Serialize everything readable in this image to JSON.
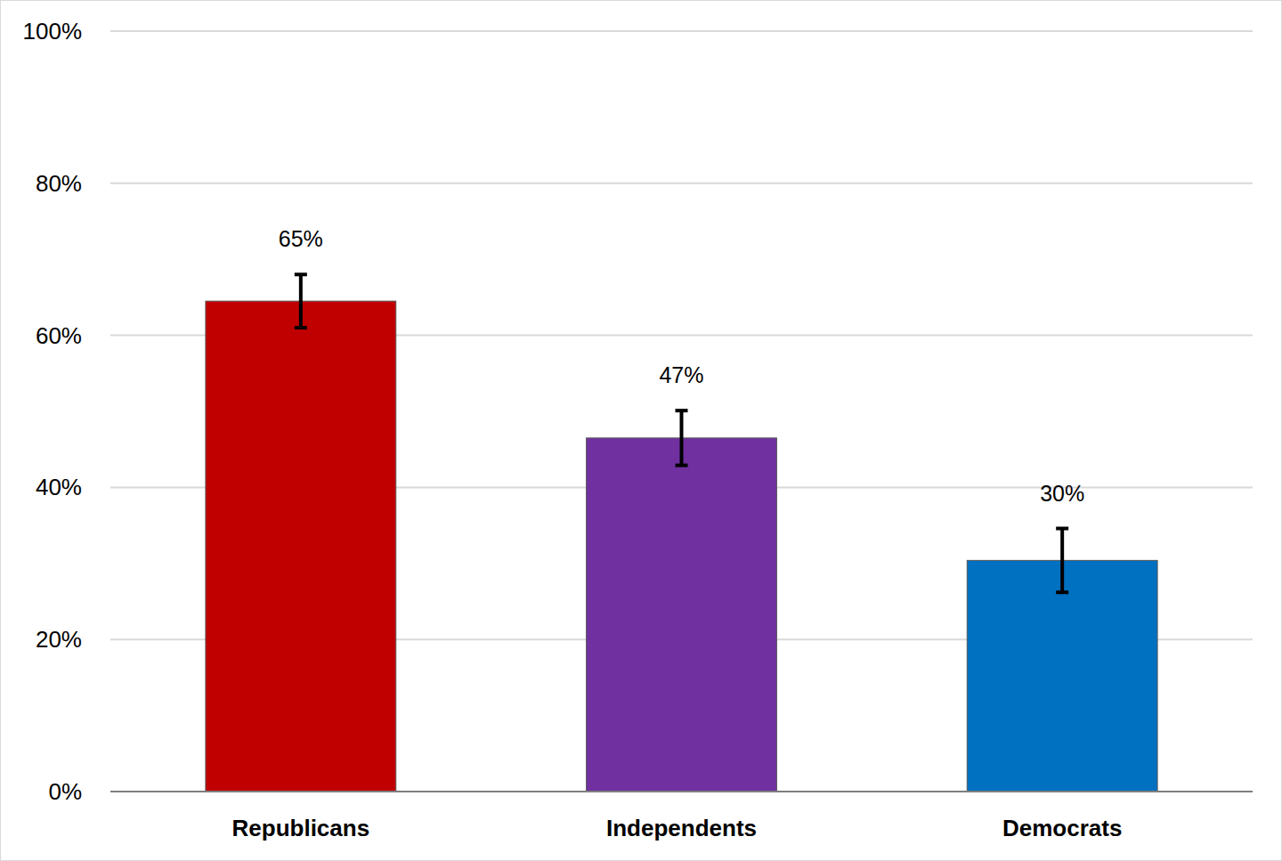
{
  "chart_data": {
    "type": "bar",
    "categories": [
      "Republicans",
      "Independents",
      "Democrats"
    ],
    "values": [
      64.5,
      46.5,
      30.4
    ],
    "value_labels": [
      "65%",
      "47%",
      "30%"
    ],
    "errors": [
      3.5,
      3.6,
      4.2
    ],
    "colors": [
      "#c00000",
      "#7030a0",
      "#0070c0"
    ],
    "ylim": [
      0,
      100
    ],
    "yticks": [
      {
        "value": 0,
        "label": "0%"
      },
      {
        "value": 20,
        "label": "20%"
      },
      {
        "value": 40,
        "label": "40%"
      },
      {
        "value": 60,
        "label": "60%"
      },
      {
        "value": 80,
        "label": "80%"
      },
      {
        "value": 100,
        "label": "100%"
      }
    ],
    "grid": true,
    "data_labels": true
  }
}
